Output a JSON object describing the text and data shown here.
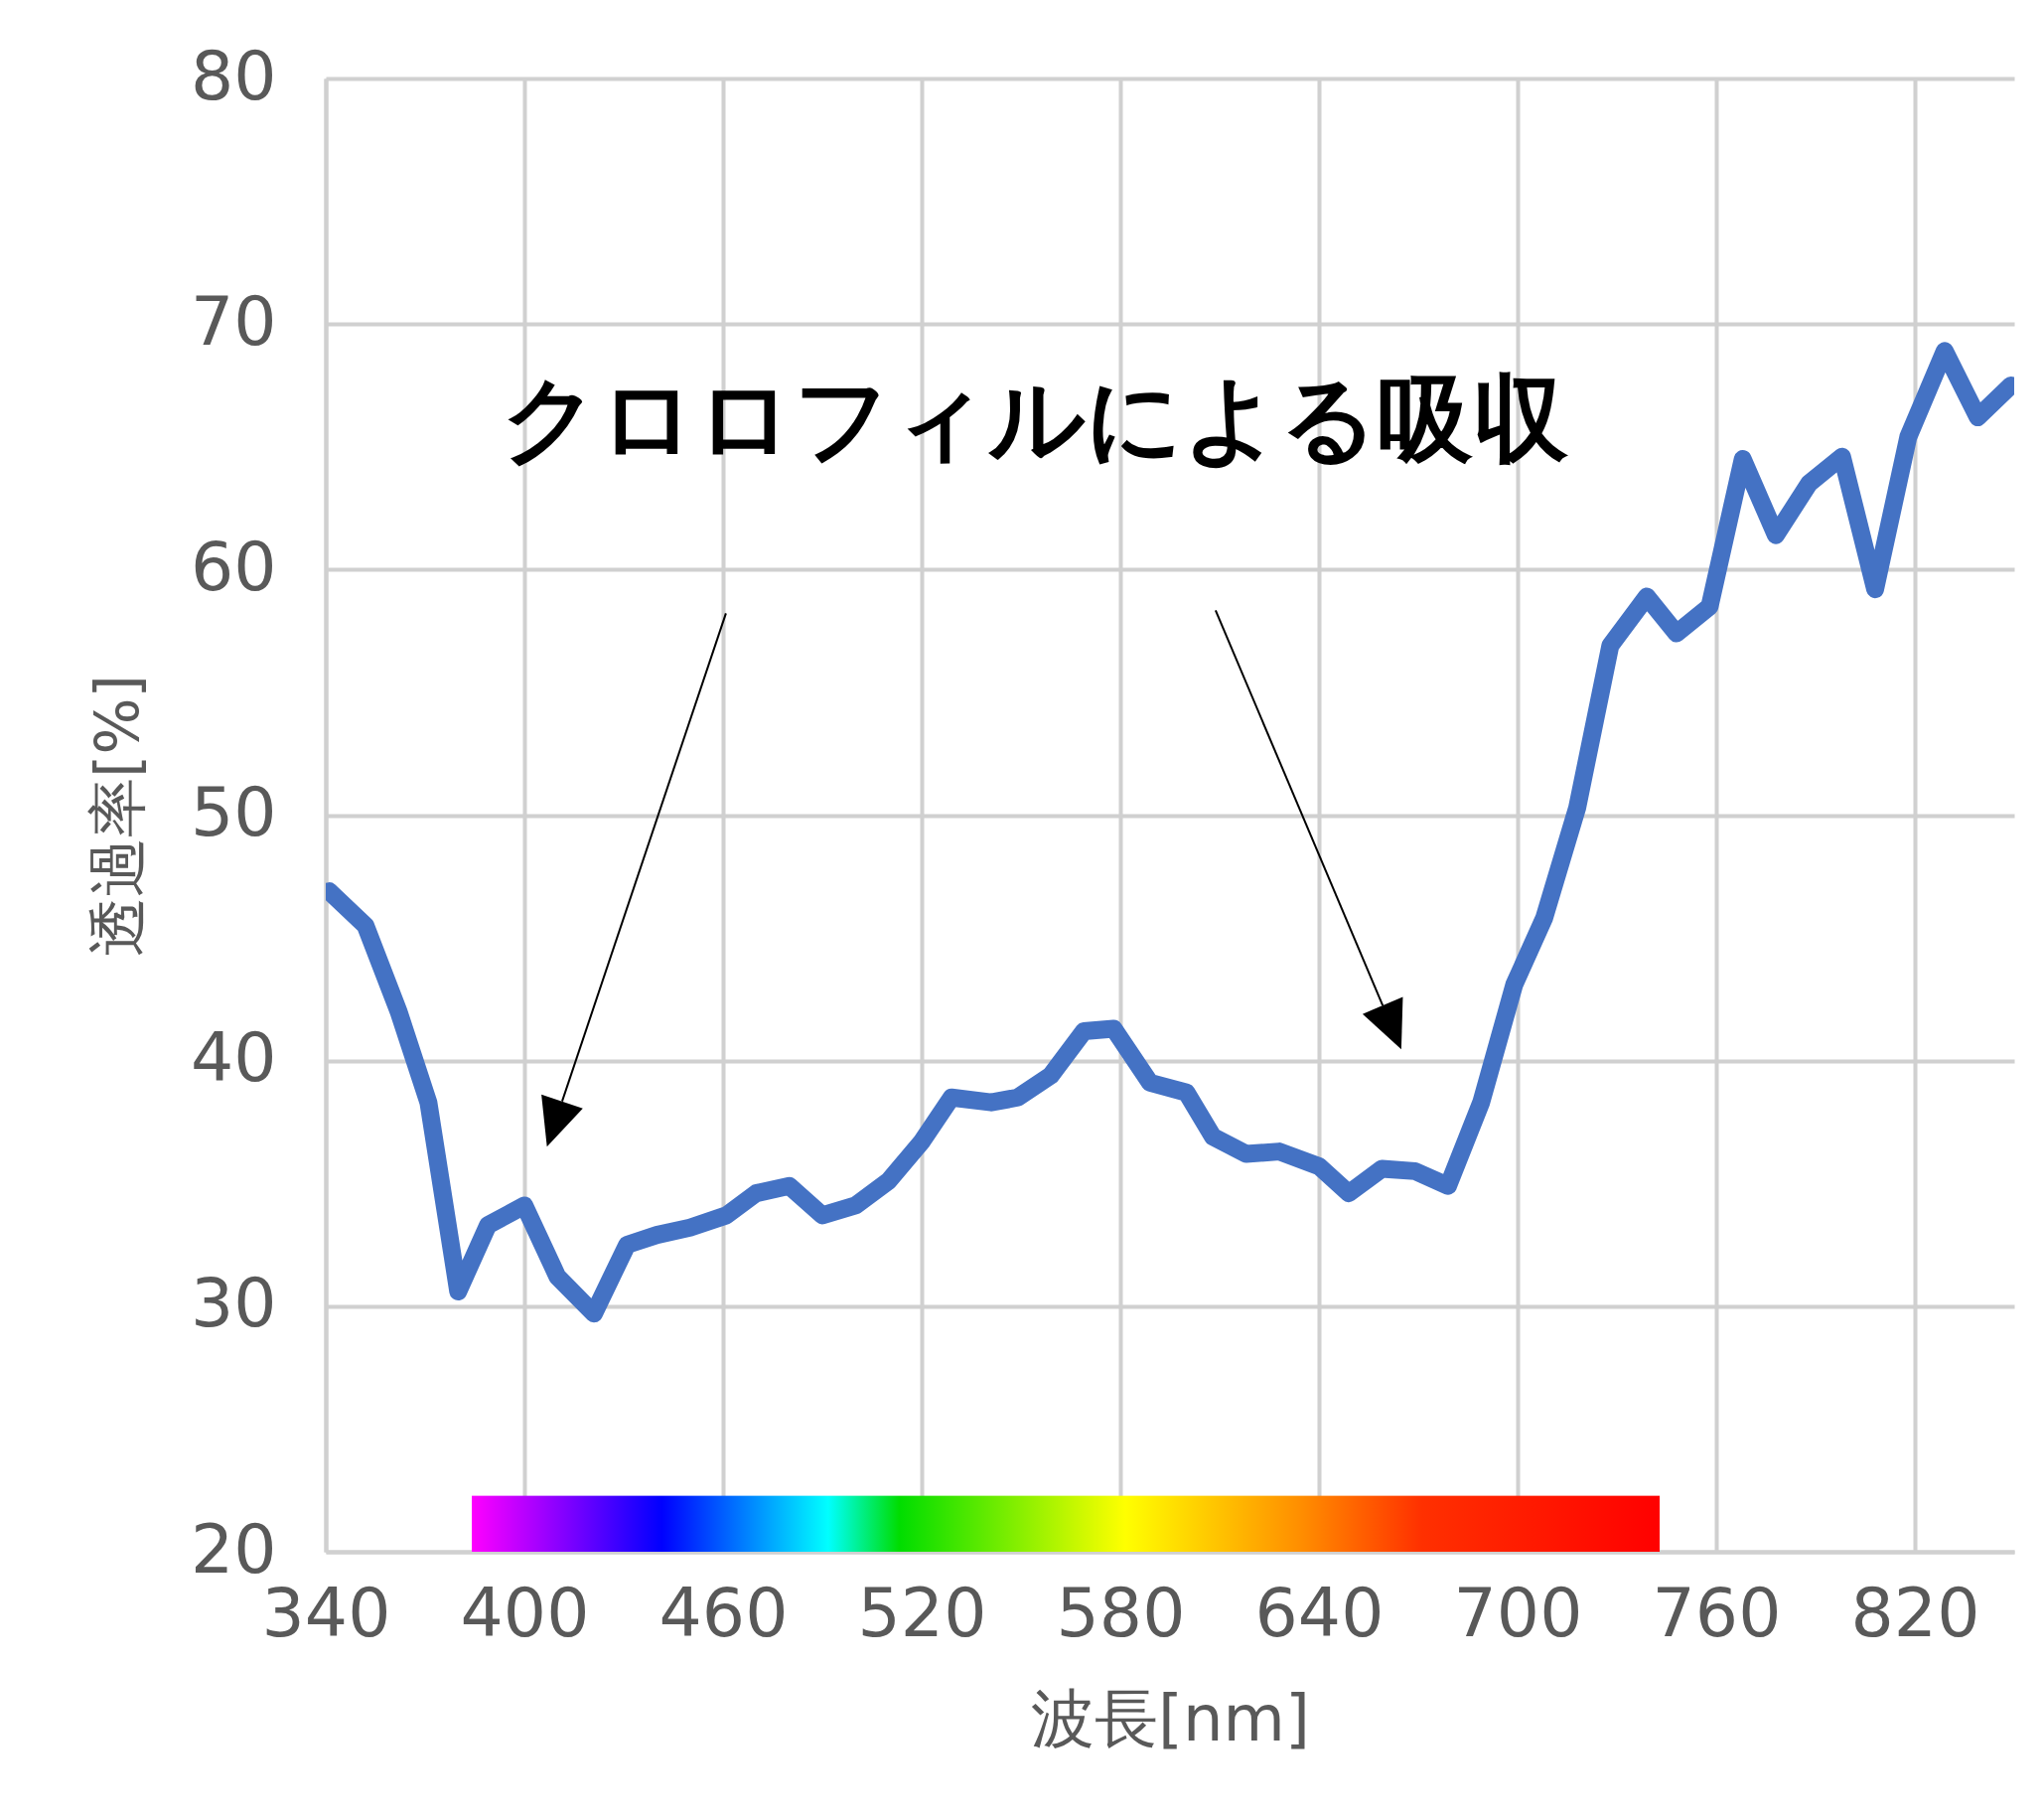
{
  "chart_data": {
    "type": "line",
    "xlabel": "波長[nm]",
    "ylabel": "透過率[%]",
    "annotations": [
      "クロロフィルによる吸収"
    ],
    "x": [
      341,
      352,
      362,
      371,
      380,
      389,
      400,
      410,
      421,
      431,
      440,
      450,
      461,
      470,
      480,
      490,
      500,
      510,
      520,
      529,
      541,
      549,
      559,
      569,
      578,
      589,
      600,
      608,
      618,
      628,
      640,
      649,
      659,
      669,
      679,
      689,
      699,
      708,
      718,
      728,
      739,
      748,
      758,
      768,
      778,
      788,
      798,
      808,
      818,
      829,
      839,
      849
    ],
    "series": [
      {
        "color": "#4472c4",
        "values": [
          46.9,
          45.5,
          42,
          38.3,
          30.6,
          33.3,
          34.1,
          31.2,
          29.7,
          32.5,
          32.9,
          33.2,
          33.7,
          34.6,
          34.9,
          33.7,
          34.1,
          35.1,
          36.7,
          38.5,
          38.3,
          38.5,
          39.4,
          41.2,
          41.3,
          39.1,
          38.7,
          36.9,
          36.2,
          36.3,
          35.7,
          34.6,
          35.6,
          35.5,
          34.9,
          38.3,
          43.1,
          45.8,
          50.3,
          56.9,
          58.9,
          57.4,
          58.5,
          64.5,
          61.4,
          63.5,
          64.6,
          59.2,
          65.4,
          68.9,
          66.2,
          67.5
        ]
      }
    ],
    "xlim": [
      340,
      850
    ],
    "xticks": [
      340,
      400,
      460,
      520,
      580,
      640,
      700,
      760,
      820
    ],
    "ylim": [
      20,
      80
    ],
    "yticks": [
      20,
      30,
      40,
      50,
      60,
      70,
      80
    ],
    "grid": true,
    "line_style": "solid"
  }
}
